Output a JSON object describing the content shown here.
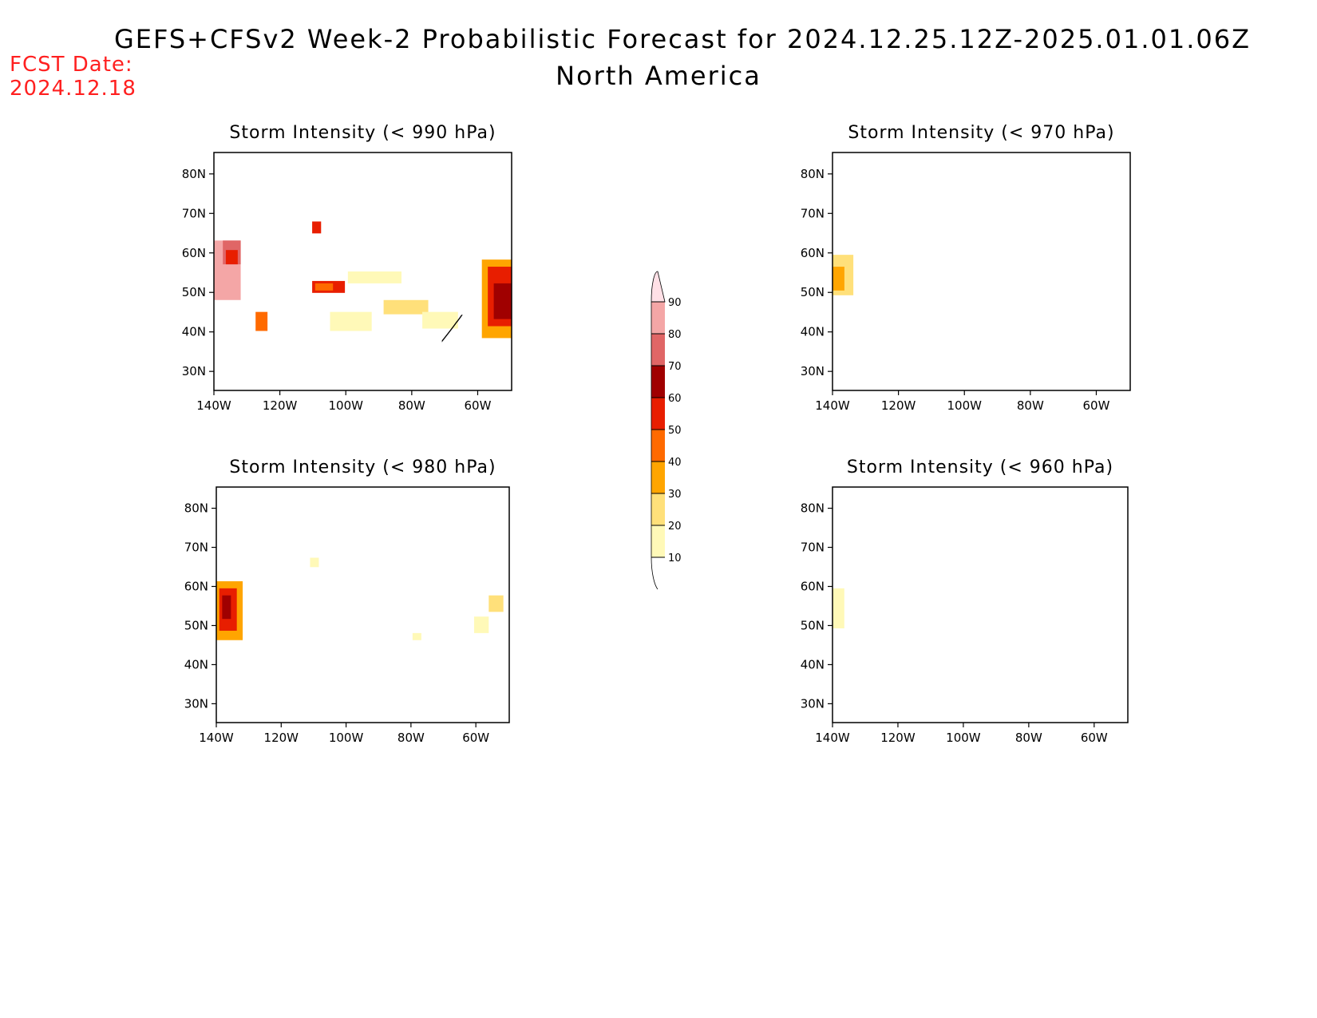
{
  "header": {
    "title": "GEFS+CFSv2 Week-2 Probabilistic Forecast for 2024.12.25.12Z-2025.01.01.06Z",
    "subtitle": "North America",
    "fcst_label": "FCST Date:",
    "fcst_date": "2024.12.18",
    "fcst_color": "#ff2020"
  },
  "axes": {
    "lon_ticks": [
      "140W",
      "120W",
      "100W",
      "80W",
      "60W"
    ],
    "lat_ticks": [
      "80N",
      "70N",
      "60N",
      "50N",
      "40N",
      "30N"
    ]
  },
  "colorbar": {
    "levels": [
      "10",
      "20",
      "30",
      "40",
      "50",
      "60",
      "70",
      "80",
      "90"
    ],
    "colors": [
      "#fff9b8",
      "#ffe07a",
      "#ffa500",
      "#ff6a00",
      "#e81e00",
      "#a00000",
      "#e06666",
      "#f4a6a6",
      "#ffe0e6"
    ]
  },
  "panels": [
    {
      "title": "Storm Intensity (< 990 hPa)"
    },
    {
      "title": "Storm Intensity (< 970 hPa)"
    },
    {
      "title": "Storm Intensity (< 980 hPa)"
    },
    {
      "title": "Storm Intensity (< 960 hPa)"
    }
  ]
}
